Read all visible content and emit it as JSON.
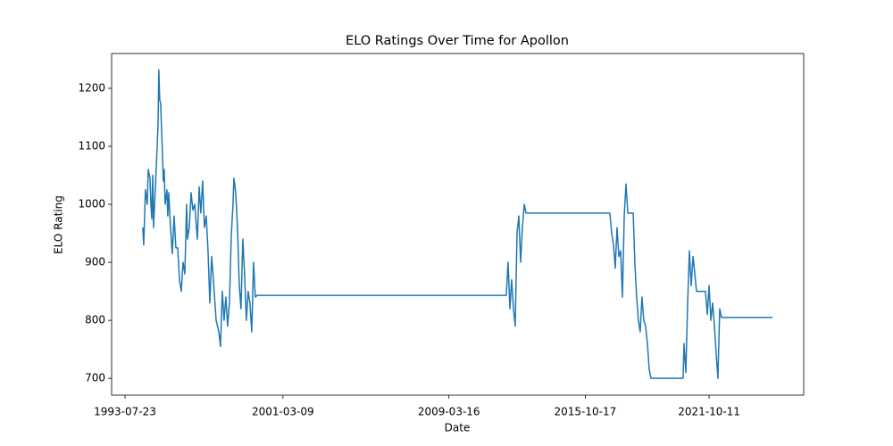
{
  "chart_data": {
    "type": "line",
    "title": "ELO Ratings Over Time for Apollon",
    "xlabel": "Date",
    "ylabel": "ELO Rating",
    "color": "#1f77b4",
    "x": [
      "1994-06-01",
      "1994-06-17",
      "1994-07-18",
      "1994-08-19",
      "1994-09-05",
      "1994-10-06",
      "1994-10-22",
      "1994-11-07",
      "1994-11-23",
      "1994-12-08",
      "1995-01-09",
      "1995-02-10",
      "1995-02-26",
      "1995-03-11",
      "1995-03-27",
      "1995-04-12",
      "1995-04-28",
      "1995-05-13",
      "1995-05-29",
      "1995-06-14",
      "1995-06-30",
      "1995-08-01",
      "1995-08-16",
      "1995-09-02",
      "1995-10-03",
      "1995-11-04",
      "1995-12-05",
      "1996-01-06",
      "1996-02-07",
      "1996-03-09",
      "1996-04-10",
      "1996-05-11",
      "1996-06-12",
      "1996-07-13",
      "1996-07-29",
      "1996-08-30",
      "1996-09-30",
      "1996-11-01",
      "1996-12-03",
      "1997-01-19",
      "1997-02-20",
      "1997-03-21",
      "1997-04-22",
      "1997-05-24",
      "1997-06-24",
      "1997-07-26",
      "1997-08-27",
      "1997-09-28",
      "1997-10-29",
      "1997-12-16",
      "1998-02-02",
      "1998-03-03",
      "1998-04-04",
      "1998-05-05",
      "1998-06-06",
      "1998-07-07",
      "1998-08-08",
      "1998-09-09",
      "1998-10-10",
      "1998-10-26",
      "1998-11-27",
      "1998-12-28",
      "1999-01-29",
      "1999-02-28",
      "1999-04-01",
      "1999-05-02",
      "1999-06-03",
      "1999-07-04",
      "1999-08-05",
      "1999-09-06",
      "1999-10-07",
      "1999-10-23",
      "1999-11-08",
      "1999-12-10",
      "2011-12-23",
      "2012-01-24",
      "2012-02-25",
      "2012-03-27",
      "2012-04-28",
      "2012-05-29",
      "2012-06-30",
      "2012-08-01",
      "2012-09-02",
      "2012-10-03",
      "2012-11-04",
      "2012-12-05",
      "2016-12-25",
      "2017-01-26",
      "2017-02-27",
      "2017-03-29",
      "2017-04-30",
      "2017-06-01",
      "2017-07-02",
      "2017-08-03",
      "2017-09-04",
      "2017-10-05",
      "2017-11-06",
      "2018-02-09",
      "2018-03-10",
      "2018-04-11",
      "2018-05-12",
      "2018-06-13",
      "2018-07-14",
      "2018-08-15",
      "2018-09-16",
      "2018-10-18",
      "2018-11-19",
      "2018-12-20",
      "2020-07-09",
      "2020-07-25",
      "2020-08-26",
      "2020-09-27",
      "2020-10-28",
      "2020-11-29",
      "2020-12-31",
      "2021-02-01",
      "2021-03-02",
      "2021-08-07",
      "2021-09-09",
      "2021-10-10",
      "2021-11-11",
      "2021-12-12",
      "2022-01-13",
      "2022-02-14",
      "2022-03-15",
      "2022-04-16",
      "2022-05-17",
      "2024-11-02"
    ],
    "values": [
      960,
      930,
      1025,
      1000,
      1060,
      1045,
      1000,
      975,
      1050,
      960,
      1030,
      1100,
      1140,
      1232,
      1180,
      1175,
      1130,
      1090,
      1040,
      1060,
      1000,
      1025,
      980,
      1020,
      960,
      915,
      980,
      925,
      925,
      870,
      850,
      900,
      880,
      1000,
      940,
      960,
      1020,
      990,
      1000,
      940,
      1030,
      985,
      1040,
      960,
      980,
      920,
      830,
      910,
      870,
      800,
      780,
      755,
      850,
      800,
      840,
      790,
      830,
      945,
      1000,
      1045,
      1020,
      960,
      860,
      820,
      940,
      880,
      800,
      850,
      830,
      780,
      900,
      870,
      840,
      843,
      843,
      900,
      820,
      870,
      820,
      790,
      950,
      980,
      900,
      960,
      1000,
      985,
      985,
      950,
      930,
      890,
      960,
      910,
      920,
      840,
      980,
      1035,
      985,
      985,
      900,
      840,
      800,
      780,
      840,
      800,
      790,
      760,
      715,
      700,
      700,
      760,
      710,
      830,
      920,
      860,
      910,
      880,
      850,
      850,
      810,
      860,
      800,
      830,
      790,
      740,
      700,
      820,
      805,
      805
    ],
    "xlim": [
      "1992-11-28",
      "2026-05-07"
    ],
    "xticks": [
      "1993-07-23",
      "2001-03-09",
      "2009-03-16",
      "2015-10-17",
      "2021-10-11"
    ],
    "ylim": [
      671,
      1260
    ],
    "yticks": [
      700,
      800,
      900,
      1000,
      1100,
      1200
    ]
  }
}
